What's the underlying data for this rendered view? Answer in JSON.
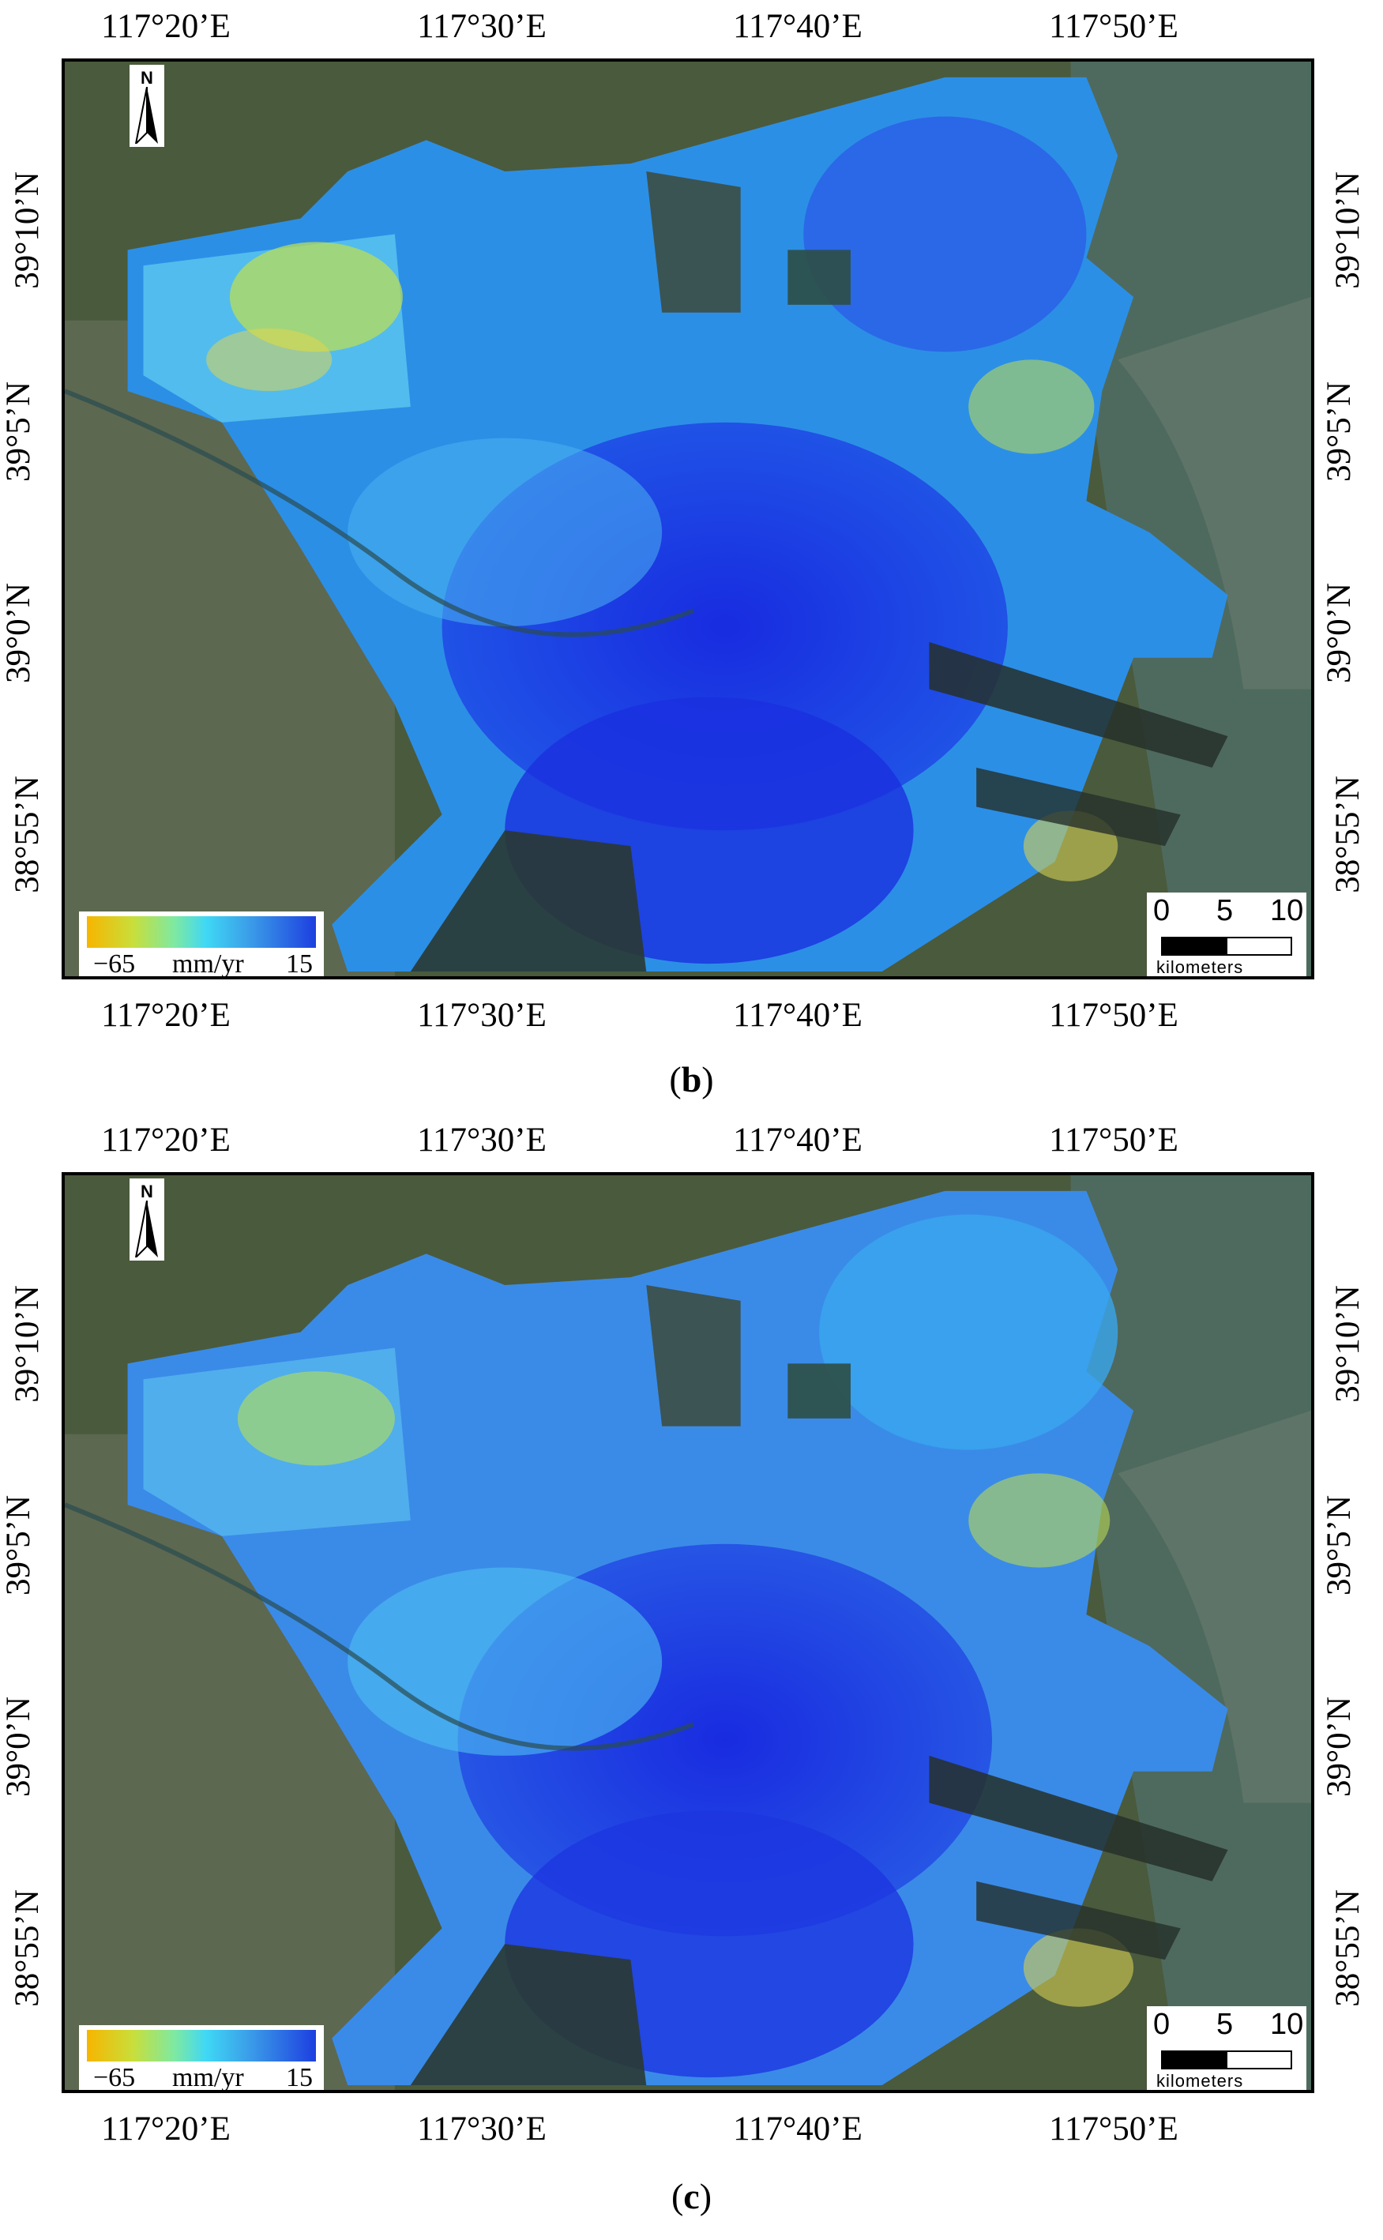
{
  "panels": [
    {
      "id": "b",
      "caption_letter": "b",
      "lon_ticks_top": [
        "117°20’E",
        "117°30’E",
        "117°40’E",
        "117°50’E"
      ],
      "lon_ticks_bottom": [
        "117°20’E",
        "117°30’E",
        "117°40’E",
        "117°50’E"
      ],
      "lat_ticks_left": [
        "39°10’N",
        "39°5’N",
        "39°0’N",
        "38°55’N"
      ],
      "lat_ticks_right": [
        "39°10’N",
        "39°5’N",
        "39°0’N",
        "38°55’N"
      ],
      "north_label": "N",
      "legend": {
        "min": "−65",
        "unit": "mm/yr",
        "max": "15"
      },
      "scalebar": {
        "labels": [
          "0",
          "5",
          "10"
        ],
        "unit": "kilometers"
      }
    },
    {
      "id": "c",
      "caption_letter": "c",
      "lon_ticks_top": [
        "117°20’E",
        "117°30’E",
        "117°40’E",
        "117°50’E"
      ],
      "lon_ticks_bottom": [
        "117°20’E",
        "117°30’E",
        "117°40’E",
        "117°50’E"
      ],
      "lat_ticks_left": [
        "39°10’N",
        "39°5’N",
        "39°0’N",
        "38°55’N"
      ],
      "lat_ticks_right": [
        "39°10’N",
        "39°5’N",
        "39°0’N",
        "38°55’N"
      ],
      "north_label": "N",
      "legend": {
        "min": "−65",
        "unit": "mm/yr",
        "max": "15"
      },
      "scalebar": {
        "labels": [
          "0",
          "5",
          "10"
        ],
        "unit": "kilometers"
      }
    }
  ],
  "colors": {
    "legend_low": "#f7b500",
    "legend_mid": "#3fd8f5",
    "legend_high": "#1d3fe0",
    "land": "#4a5a3c",
    "sea": "#4e6a5e"
  }
}
